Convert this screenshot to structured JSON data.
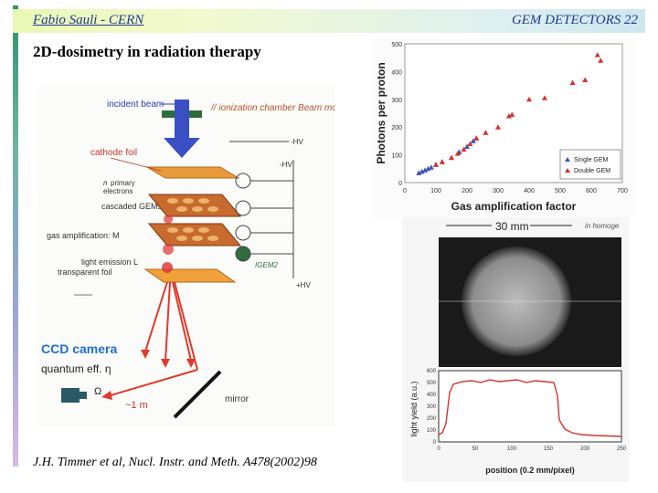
{
  "header": {
    "author": "Fabio Sauli - CERN",
    "section": "GEM DETECTORS 22"
  },
  "slide": {
    "title": "2D-dosimetry in radiation therapy"
  },
  "citation": "J.H. Timmer et al, Nucl. Instr. and Meth. A478(2002)98",
  "diagram": {
    "incident_beam": "incident beam",
    "annotation_handwritten": "// ionization chamber Beam monitor",
    "cathode_foil": "cathode foil",
    "primary_electrons": [
      "n",
      "primary",
      "electrons"
    ],
    "cascaded_gems": "cascaded GEMs",
    "gas_amplification": "gas amplification: M",
    "light_emission": "light emission L",
    "transparent_foil": "transparent foil",
    "hv_labels": [
      "-HV",
      "-HV",
      "+HV"
    ],
    "igem": "IGEM2",
    "ccd_camera": "CCD camera",
    "quantum_eff": "quantum eff. η",
    "omega": "Ω",
    "distance": "~1 m",
    "mirror": "mirror"
  },
  "colors": {
    "header_text": "#1d3b8c",
    "cathode_label": "#c0392b",
    "ccd_label": "#1f6fd1",
    "gem_fill": "#c96a2f",
    "beam_arrow": "#3b4fc4",
    "light_rays": "#e03a2a"
  },
  "chart_data": {
    "type": "scatter",
    "title": "",
    "xlabel": "Gas amplification factor",
    "ylabel": "Photons per proton",
    "xlim": [
      0,
      700
    ],
    "ylim": [
      0,
      500
    ],
    "xticks": [
      0,
      100,
      200,
      300,
      400,
      500,
      600,
      700
    ],
    "yticks": [
      0,
      100,
      200,
      300,
      400,
      500
    ],
    "legend_position": "bottom-right",
    "series": [
      {
        "name": "Single GEM",
        "marker": "triangle",
        "color": "#3a55b8",
        "x": [
          45,
          55,
          65,
          75,
          85,
          100,
          120,
          150,
          175,
          200,
          220,
          230
        ],
        "y": [
          35,
          40,
          45,
          50,
          55,
          65,
          75,
          90,
          110,
          130,
          150,
          160
        ]
      },
      {
        "name": "Double GEM",
        "marker": "triangle",
        "color": "#d6322c",
        "x": [
          100,
          120,
          150,
          170,
          190,
          210,
          230,
          260,
          300,
          335,
          345,
          400,
          450,
          540,
          580,
          620,
          630
        ],
        "y": [
          65,
          75,
          90,
          105,
          120,
          140,
          160,
          180,
          200,
          240,
          245,
          300,
          305,
          360,
          370,
          460,
          440
        ]
      }
    ]
  },
  "image_panel": {
    "scale_label": "30 mm",
    "handwritten_note": "in homoge",
    "profile": {
      "ylabel": "light yield (a.u.)",
      "xlabel": "position (0.2 mm/pixel)",
      "xticks": [
        0,
        50,
        100,
        150,
        200,
        250
      ],
      "yticks": [
        0,
        100,
        200,
        300,
        400,
        500,
        600
      ]
    }
  }
}
